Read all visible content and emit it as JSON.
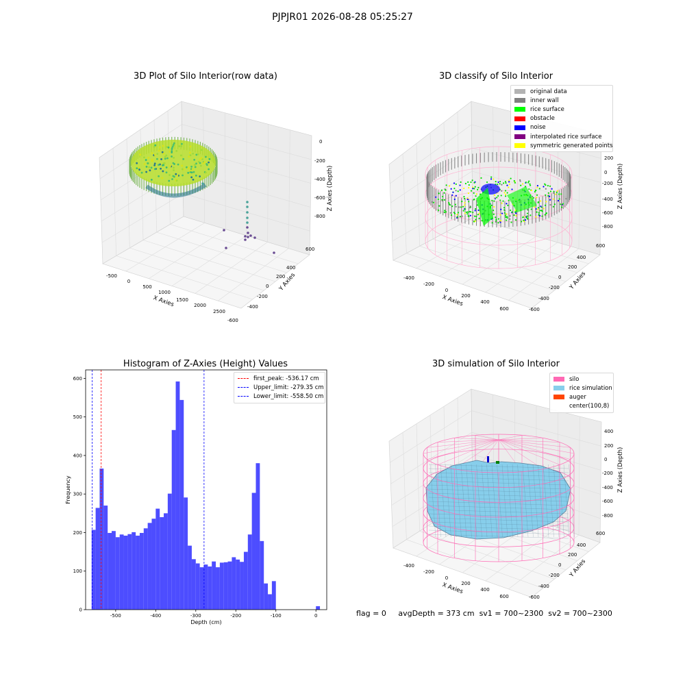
{
  "suptitle": "PJPJR01 2026-08-28 05:25:27",
  "chart_data": [
    {
      "type": "scatter",
      "title": "3D Plot of Silo Interior(row data)",
      "xlabel": "X Axies",
      "ylabel": "Y Axies",
      "zlabel": "Z Axies (Depth)",
      "xticks": [
        "-500",
        "0",
        "500",
        "1000",
        "1500",
        "2000",
        "2500"
      ],
      "yticks": [
        "600",
        "400",
        "200",
        "0",
        "-200",
        "-400",
        "-600"
      ],
      "zticks": [
        "0",
        "-200",
        "-400",
        "-600",
        "-800"
      ],
      "colormap": "viridis"
    },
    {
      "type": "scatter",
      "title": "3D classify of Silo Interior",
      "xlabel": "X Axies",
      "ylabel": "Y Axies",
      "zlabel": "Z Axies (Depth)",
      "xticks": [
        "-400",
        "-200",
        "0",
        "200",
        "400",
        "600"
      ],
      "yticks": [
        "600",
        "400",
        "200",
        "0",
        "-200",
        "-400",
        "-600"
      ],
      "zticks": [
        "400",
        "200",
        "0",
        "-200",
        "-400",
        "-600",
        "-800"
      ],
      "legend": [
        {
          "label": "original data",
          "color": "#b3b3b3"
        },
        {
          "label": "inner wall",
          "color": "#808080"
        },
        {
          "label": "rice surface",
          "color": "#00ff00"
        },
        {
          "label": "obstacle",
          "color": "#ff0000"
        },
        {
          "label": "noise",
          "color": "#0000ff"
        },
        {
          "label": "interpolated rice surface",
          "color": "#800080"
        },
        {
          "label": "symmetric generated points",
          "color": "#ffff00"
        }
      ]
    },
    {
      "type": "bar",
      "title": "Histogram of Z-Axies (Height) Values",
      "xlabel": "Depth (cm)",
      "ylabel": "Frequency",
      "xlim": [
        -575,
        27
      ],
      "ylim": [
        0,
        622
      ],
      "xticks": [
        -500,
        -400,
        -300,
        -200,
        -100,
        0
      ],
      "yticks": [
        0,
        100,
        200,
        300,
        400,
        500,
        600
      ],
      "bar_color": "#4d4dff",
      "bin_width": 10,
      "bins": [
        {
          "x0": -560,
          "v": 207
        },
        {
          "x0": -550,
          "v": 264
        },
        {
          "x0": -540,
          "v": 366
        },
        {
          "x0": -530,
          "v": 270
        },
        {
          "x0": -520,
          "v": 199
        },
        {
          "x0": -510,
          "v": 204
        },
        {
          "x0": -500,
          "v": 188
        },
        {
          "x0": -490,
          "v": 195
        },
        {
          "x0": -480,
          "v": 192
        },
        {
          "x0": -470,
          "v": 196
        },
        {
          "x0": -460,
          "v": 201
        },
        {
          "x0": -450,
          "v": 192
        },
        {
          "x0": -440,
          "v": 199
        },
        {
          "x0": -430,
          "v": 211
        },
        {
          "x0": -420,
          "v": 225
        },
        {
          "x0": -410,
          "v": 236
        },
        {
          "x0": -400,
          "v": 262
        },
        {
          "x0": -390,
          "v": 240
        },
        {
          "x0": -380,
          "v": 250
        },
        {
          "x0": -370,
          "v": 301
        },
        {
          "x0": -360,
          "v": 466
        },
        {
          "x0": -350,
          "v": 592
        },
        {
          "x0": -340,
          "v": 544
        },
        {
          "x0": -330,
          "v": 291
        },
        {
          "x0": -320,
          "v": 166
        },
        {
          "x0": -310,
          "v": 131
        },
        {
          "x0": -300,
          "v": 120
        },
        {
          "x0": -290,
          "v": 110
        },
        {
          "x0": -280,
          "v": 117
        },
        {
          "x0": -270,
          "v": 112
        },
        {
          "x0": -260,
          "v": 125
        },
        {
          "x0": -250,
          "v": 110
        },
        {
          "x0": -240,
          "v": 122
        },
        {
          "x0": -230,
          "v": 123
        },
        {
          "x0": -220,
          "v": 125
        },
        {
          "x0": -210,
          "v": 136
        },
        {
          "x0": -200,
          "v": 130
        },
        {
          "x0": -190,
          "v": 124
        },
        {
          "x0": -180,
          "v": 150
        },
        {
          "x0": -170,
          "v": 195
        },
        {
          "x0": -160,
          "v": 303
        },
        {
          "x0": -150,
          "v": 380
        },
        {
          "x0": -140,
          "v": 178
        },
        {
          "x0": -130,
          "v": 68
        },
        {
          "x0": -120,
          "v": 40
        },
        {
          "x0": -110,
          "v": 74
        },
        {
          "x0": -100,
          "v": 0
        },
        {
          "x0": 0,
          "v": 9
        }
      ],
      "vlines": [
        {
          "label": "first_peak: -536.17 cm",
          "x": -536.17,
          "color": "#ff0000"
        },
        {
          "label": "Upper_limit: -279.35 cm",
          "x": -279.35,
          "color": "#0000ff"
        },
        {
          "label": "Lower_limit: -558.50 cm",
          "x": -558.5,
          "color": "#0000ff"
        }
      ]
    },
    {
      "type": "scatter",
      "title": "3D simulation of Silo Interior",
      "xlabel": "X Axies",
      "ylabel": "Y Axies",
      "zlabel": "Z Axies (Depth)",
      "xticks": [
        "-400",
        "-200",
        "0",
        "200",
        "400",
        "600"
      ],
      "yticks": [
        "600",
        "400",
        "200",
        "0",
        "-200",
        "-400",
        "-600"
      ],
      "zticks": [
        "400",
        "200",
        "0",
        "-200",
        "-400",
        "-600",
        "-800"
      ],
      "legend": [
        {
          "label": "silo",
          "color": "#ff69b4"
        },
        {
          "label": "rice simulation",
          "color": "#87ceeb"
        },
        {
          "label": "auger",
          "color": "#ff4500"
        },
        {
          "label": "center(100,8)",
          "color": "#ffffff"
        }
      ]
    }
  ],
  "footer": {
    "flag": "flag = 0",
    "avg_depth": "avgDepth = 373 cm",
    "sv1": "sv1 = 700~2300",
    "sv2": "sv2 = 700~2300"
  }
}
